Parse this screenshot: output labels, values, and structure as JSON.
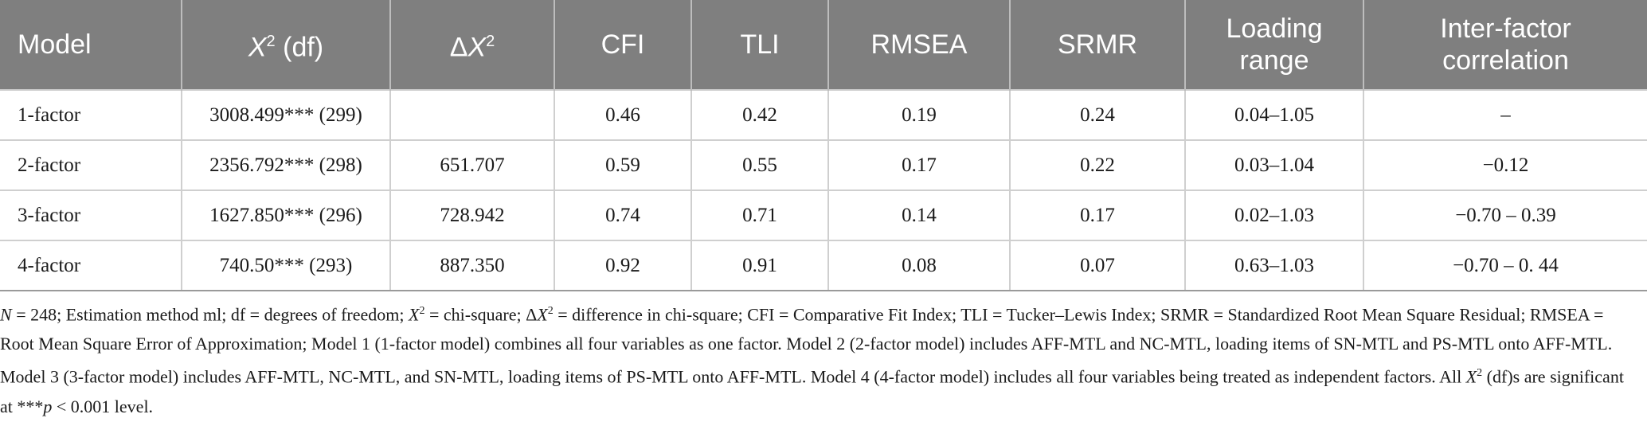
{
  "table": {
    "headers": {
      "model": "Model",
      "chi_x": "X",
      "chi_sup": "2",
      "chi_rest": " (df)",
      "delta_sym": "Δ",
      "delta_x": "X",
      "delta_sup": "2",
      "cfi": "CFI",
      "tli": "TLI",
      "rmsea": "RMSEA",
      "srmr": "SRMR",
      "loading": "Loading range",
      "interfactor": "Inter-factor correlation"
    },
    "rows": [
      {
        "model": "1-factor",
        "chi": "3008.499*** (299)",
        "delta": "",
        "cfi": "0.46",
        "tli": "0.42",
        "rmsea": "0.19",
        "srmr": "0.24",
        "loading": "0.04–1.05",
        "corr": "–"
      },
      {
        "model": "2-factor",
        "chi": "2356.792*** (298)",
        "delta": "651.707",
        "cfi": "0.59",
        "tli": "0.55",
        "rmsea": "0.17",
        "srmr": "0.22",
        "loading": "0.03–1.04",
        "corr": "−0.12"
      },
      {
        "model": "3-factor",
        "chi": "1627.850*** (296)",
        "delta": "728.942",
        "cfi": "0.74",
        "tli": "0.71",
        "rmsea": "0.14",
        "srmr": "0.17",
        "loading": "0.02–1.03",
        "corr": "−0.70 – 0.39"
      },
      {
        "model": "4-factor",
        "chi": "740.50*** (293)",
        "delta": "887.350",
        "cfi": "0.92",
        "tli": "0.91",
        "rmsea": "0.08",
        "srmr": "0.07",
        "loading": "0.63–1.03",
        "corr": "−0.70 – 0. 44"
      }
    ]
  },
  "note": {
    "n": "N",
    "t1": " = 248; Estimation method ml; df = degrees of freedom; ",
    "x1": "X",
    "s1": "2",
    "t2": " = chi-square; Δ",
    "x2": "X",
    "s2": "2",
    "t3": " = difference in chi-square; CFI = Comparative Fit Index; TLI = Tucker–Lewis Index; SRMR = Standardized Root Mean Square Residual; RMSEA = Root Mean Square Error of Approximation; Model 1 (1-factor model) combines all four variables as one factor. Model 2 (2-factor model) includes AFF-MTL and NC-MTL, loading items of SN-MTL and PS-MTL onto AFF-MTL. Model 3 (3-factor model) includes AFF-MTL, NC-MTL, and SN-MTL, loading items of PS-MTL onto AFF-MTL. Model 4 (4-factor model) includes all four variables being treated as independent factors. All ",
    "x3": "X",
    "s3": "2",
    "t4": " (df)s are significant at ***",
    "p": "p",
    "t5": " < 0.001 level."
  }
}
